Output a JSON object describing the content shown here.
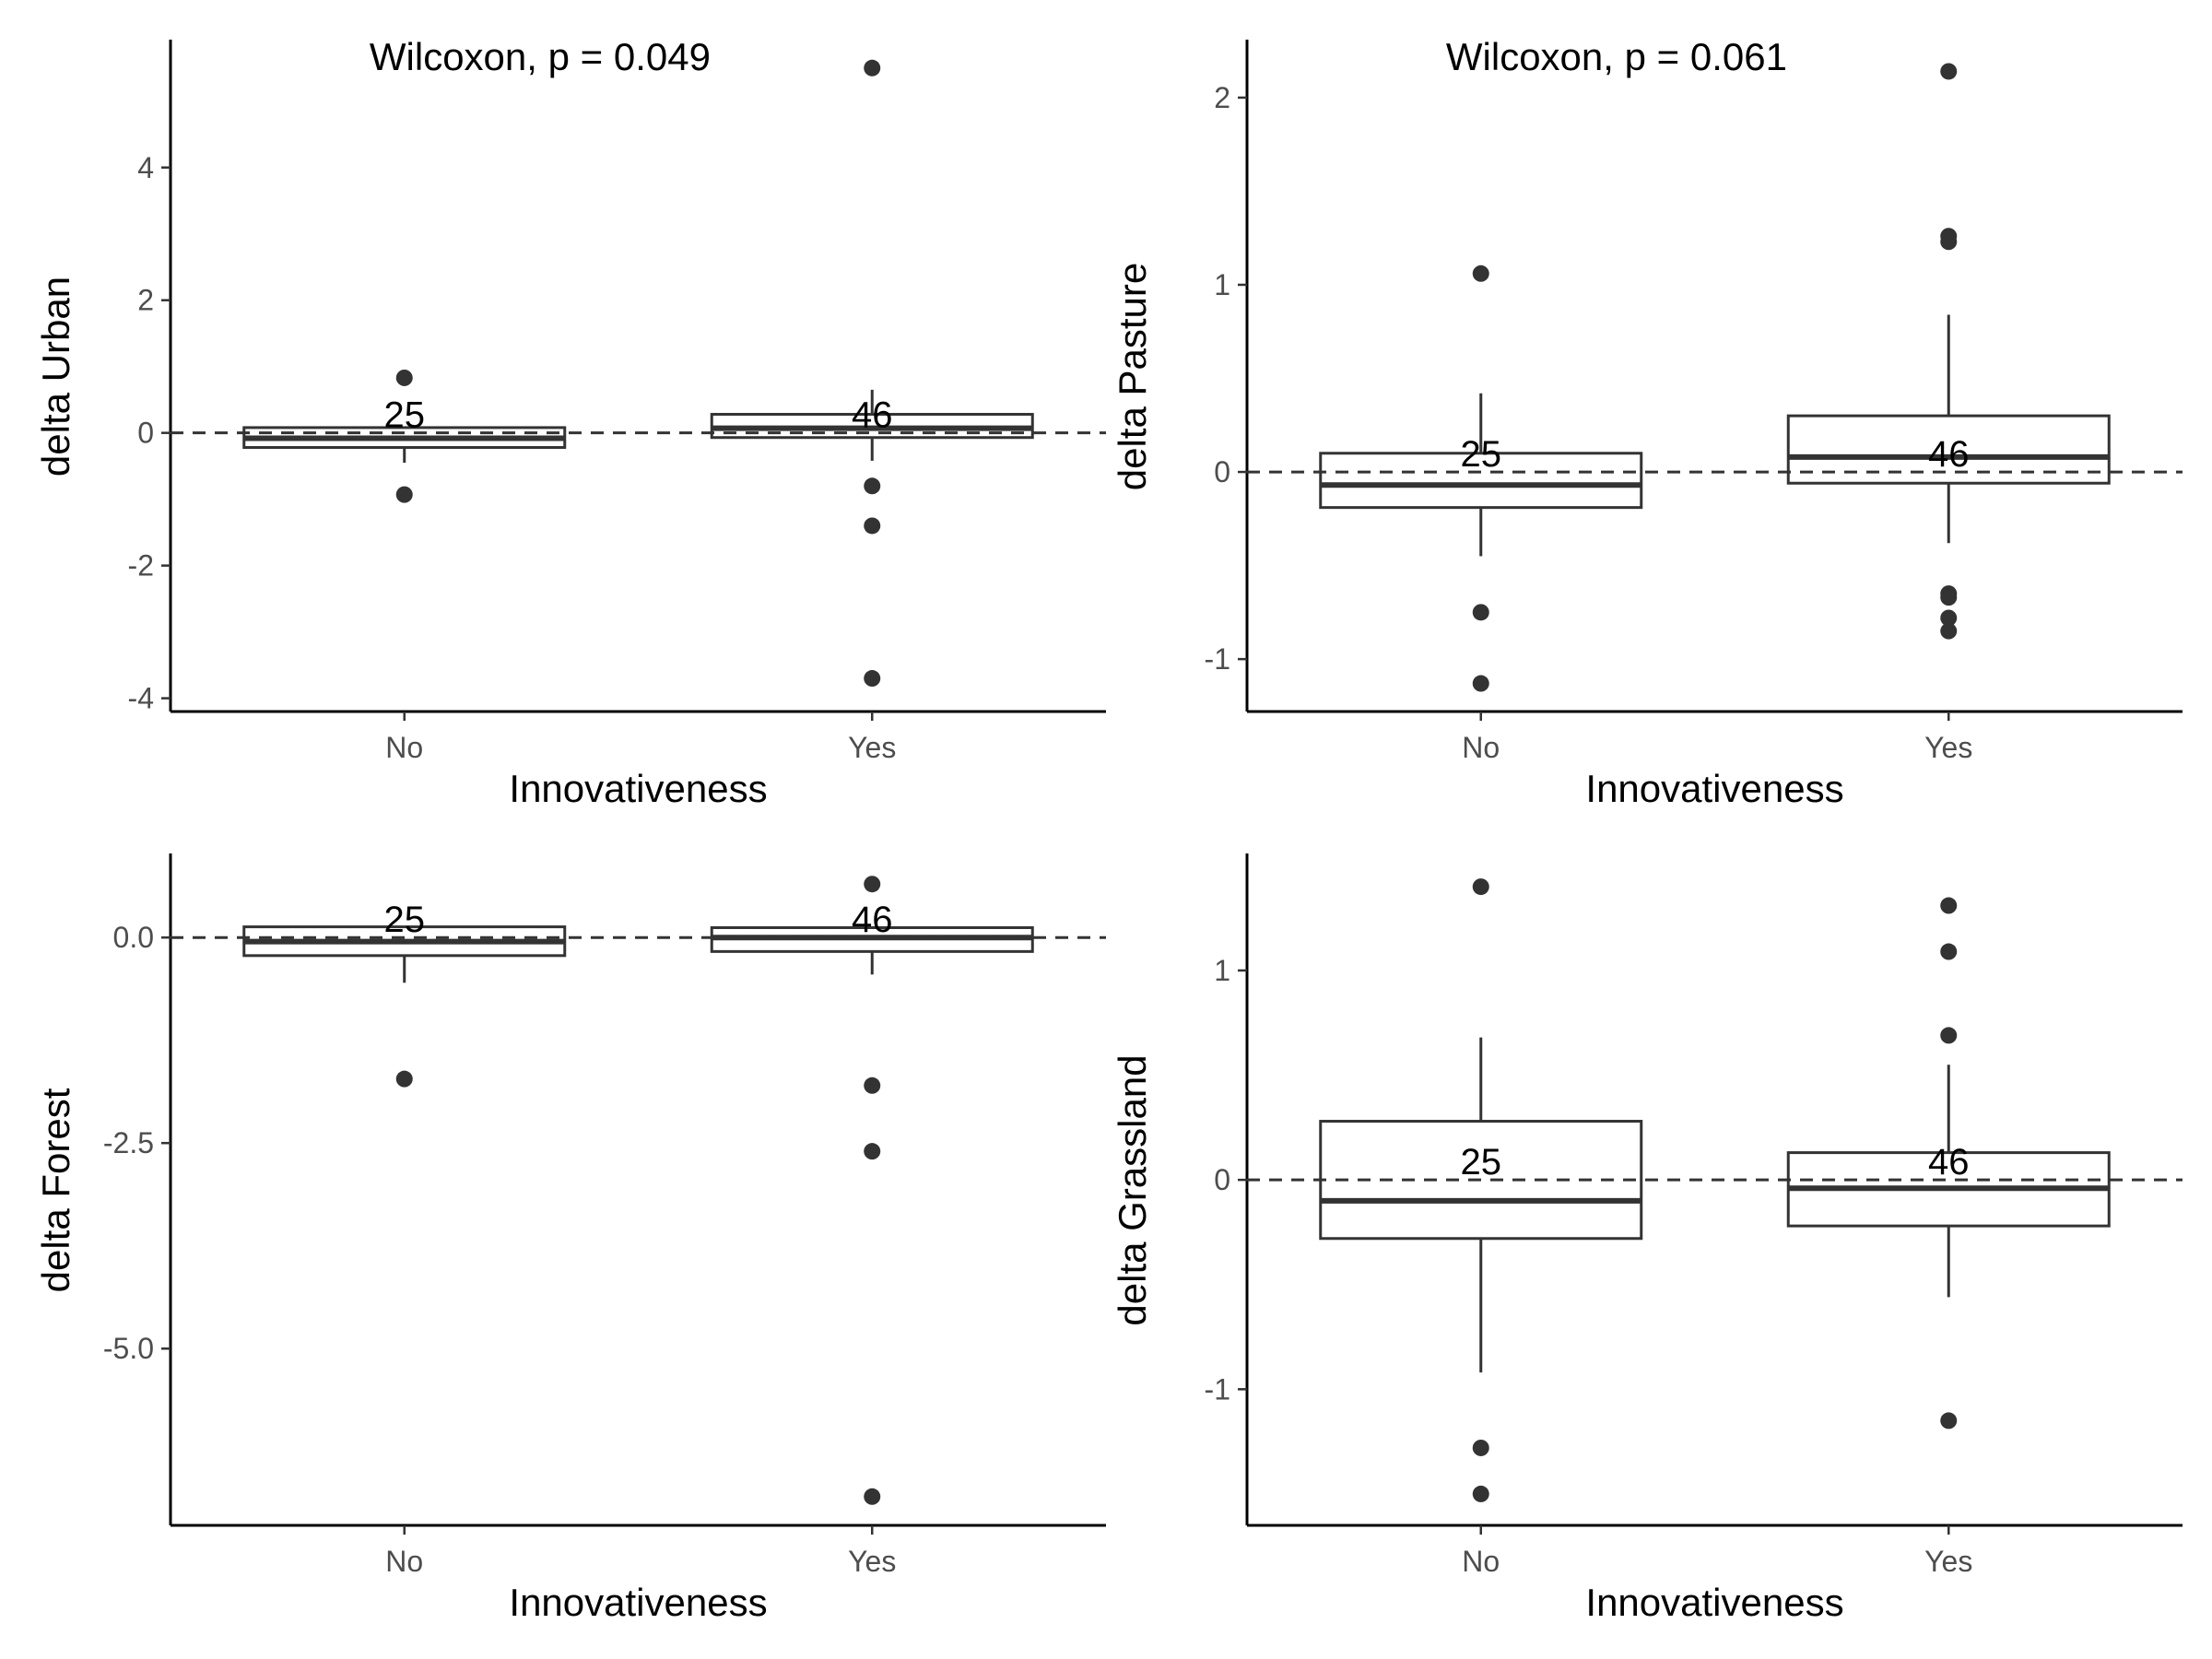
{
  "chart_data": [
    {
      "type": "box",
      "xlabel": "Innovativeness",
      "ylabel": "delta Urban",
      "annotation": "Wilcoxon, p = 0.049",
      "categories": [
        "No",
        "Yes"
      ],
      "ylim": [
        -4.2,
        5.9
      ],
      "yticks": [
        4,
        2,
        0,
        -2,
        -4
      ],
      "ytick_labels": [
        "4",
        "2",
        "0",
        "-2",
        "-4"
      ],
      "reference_line": 0,
      "boxes": [
        {
          "category": "No",
          "count_label": "25",
          "q1": -0.22,
          "median": -0.08,
          "q3": 0.08,
          "whisker_low": -0.45,
          "whisker_high": 0.08,
          "outliers": [
            0.83,
            -0.93
          ]
        },
        {
          "category": "Yes",
          "count_label": "46",
          "q1": -0.07,
          "median": 0.07,
          "q3": 0.28,
          "whisker_low": -0.42,
          "whisker_high": 0.65,
          "outliers": [
            5.5,
            -0.8,
            -1.4,
            -3.7
          ]
        }
      ]
    },
    {
      "type": "box",
      "xlabel": "Innovativeness",
      "ylabel": "delta Pasture",
      "annotation": "Wilcoxon, p = 0.061",
      "categories": [
        "No",
        "Yes"
      ],
      "ylim": [
        -1.28,
        2.3
      ],
      "yticks": [
        2,
        1,
        0,
        -1
      ],
      "ytick_labels": [
        "2",
        "1",
        "0",
        "-1"
      ],
      "reference_line": 0,
      "boxes": [
        {
          "category": "No",
          "count_label": "25",
          "q1": -0.19,
          "median": -0.07,
          "q3": 0.1,
          "whisker_low": -0.45,
          "whisker_high": 0.42,
          "outliers": [
            1.06,
            -0.75,
            -1.13
          ]
        },
        {
          "category": "Yes",
          "count_label": "46",
          "q1": -0.06,
          "median": 0.08,
          "q3": 0.3,
          "whisker_low": -0.38,
          "whisker_high": 0.84,
          "outliers": [
            2.14,
            1.26,
            1.23,
            -0.65,
            -0.67,
            -0.78,
            -0.85
          ]
        }
      ]
    },
    {
      "type": "box",
      "xlabel": "Innovativeness",
      "ylabel": "delta Forest",
      "annotation": "",
      "categories": [
        "No",
        "Yes"
      ],
      "ylim": [
        -7.15,
        1.0
      ],
      "yticks": [
        0.0,
        -2.5,
        -5.0
      ],
      "ytick_labels": [
        "0.0",
        "-2.5",
        "-5.0"
      ],
      "reference_line": 0,
      "boxes": [
        {
          "category": "No",
          "count_label": "25",
          "q1": -0.22,
          "median": -0.05,
          "q3": 0.13,
          "whisker_low": -0.55,
          "whisker_high": 0.13,
          "outliers": [
            -1.72
          ]
        },
        {
          "category": "Yes",
          "count_label": "46",
          "q1": -0.17,
          "median": 0.0,
          "q3": 0.12,
          "whisker_low": -0.45,
          "whisker_high": 0.12,
          "outliers": [
            0.65,
            -1.8,
            -2.6,
            -6.8
          ]
        }
      ]
    },
    {
      "type": "box",
      "xlabel": "Innovativeness",
      "ylabel": "delta Grassland",
      "annotation": "",
      "categories": [
        "No",
        "Yes"
      ],
      "ylim": [
        -1.65,
        1.55
      ],
      "yticks": [
        1,
        0,
        -1
      ],
      "ytick_labels": [
        "1",
        "0",
        "-1"
      ],
      "reference_line": 0,
      "boxes": [
        {
          "category": "No",
          "count_label": "25",
          "q1": -0.28,
          "median": -0.1,
          "q3": 0.28,
          "whisker_low": -0.92,
          "whisker_high": 0.68,
          "outliers": [
            1.4,
            -1.28,
            -1.5
          ]
        },
        {
          "category": "Yes",
          "count_label": "46",
          "q1": -0.22,
          "median": -0.04,
          "q3": 0.13,
          "whisker_low": -0.56,
          "whisker_high": 0.55,
          "outliers": [
            1.31,
            1.09,
            0.69,
            -1.15
          ]
        }
      ]
    }
  ]
}
